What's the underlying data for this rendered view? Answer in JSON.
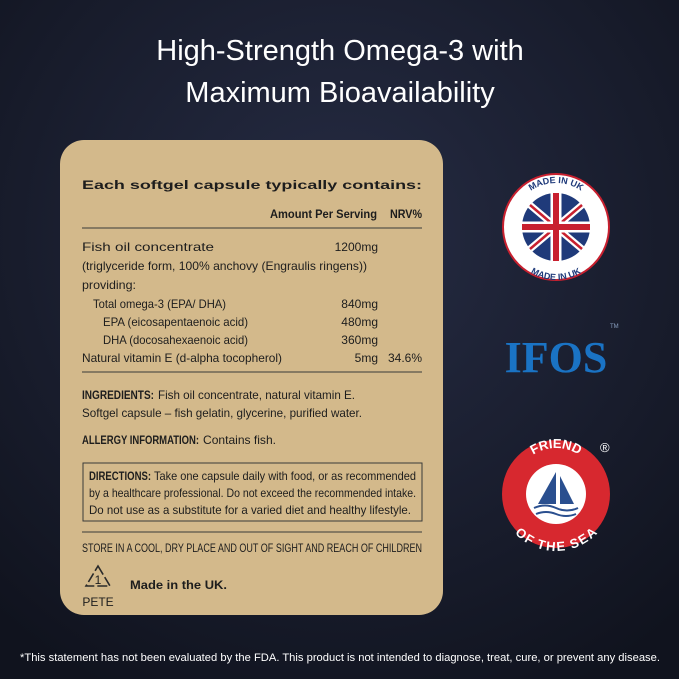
{
  "header": {
    "title_lines": [
      "High-Strength Omega-3 with",
      "Maximum Bioavailability"
    ]
  },
  "label": {
    "heading": "Each softgel capsule typically contains:",
    "columns": [
      "Amount Per Serving",
      "NRV%"
    ],
    "rows": [
      {
        "name": "Fish oil concentrate",
        "amount": "1200mg"
      },
      {
        "name": "(triglyceride form, 100% anchovy (Engraulis ringens))"
      },
      {
        "name": "providing:"
      },
      {
        "name": "Total omega-3 (EPA/ DHA)",
        "amount": "840mg"
      },
      {
        "name": "EPA (eicosapentaenoic acid)",
        "amount": "480mg"
      },
      {
        "name": "DHA (docosahexaenoic acid)",
        "amount": "360mg"
      },
      {
        "name": "Natural vitamin E (d-alpha tocopherol)",
        "amount": "5mg",
        "nrv": "34.6%"
      }
    ],
    "ingredients": {
      "label": "INGREDIENTS:",
      "lines": [
        "Fish oil concentrate, natural vitamin E.",
        "Softgel capsule – fish gelatin, glycerine, purified water."
      ]
    },
    "allergy": {
      "label": "ALLERGY INFORMATION:",
      "text": "Contains fish."
    },
    "directions": {
      "label": "DIRECTIONS:",
      "lines": [
        "Take one capsule daily with food, or as recommended",
        "by a healthcare professional. Do not exceed the recommended intake.",
        "Do not use as a substitute for a varied diet and healthy lifestyle."
      ]
    },
    "storage": "STORE IN A COOL, DRY PLACE AND OUT OF SIGHT AND REACH OF CHILDREN",
    "recycling": {
      "number": "1",
      "code": "PETE"
    },
    "origin": "Made in the UK."
  },
  "badges": {
    "made_in_uk": {
      "top": "MADE IN UK",
      "bottom": "MADE IN UK"
    },
    "ifos": {
      "text": "IFOS",
      "mark": "TM"
    },
    "friend_of_the_sea": {
      "top": "FRIEND",
      "bottom": "OF THE SEA",
      "mark": "®"
    }
  },
  "footer": "*This statement has not been evaluated by the FDA. This product is not intended to diagnose, treat, cure, or prevent any disease."
}
